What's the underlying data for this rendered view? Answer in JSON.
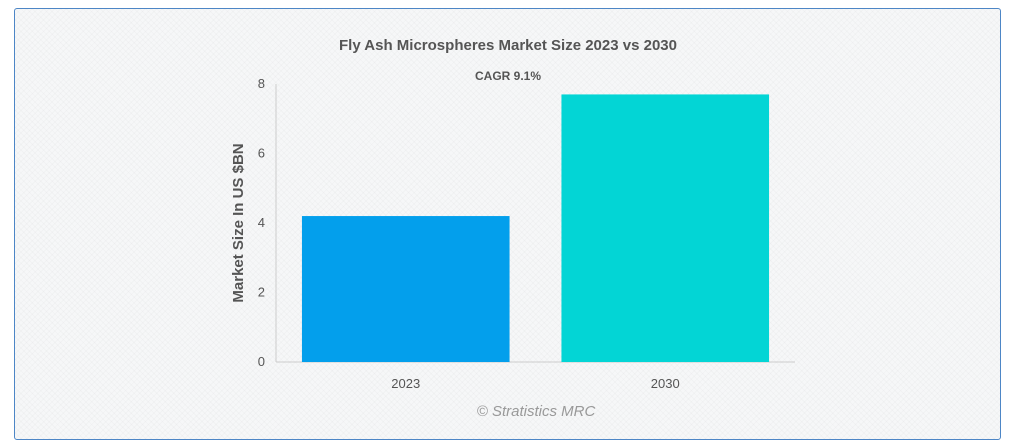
{
  "chart_data": {
    "type": "bar",
    "title": "Fly Ash Microspheres Market Size 2023 vs 2030",
    "subtitle": "CAGR 9.1%",
    "xlabel": "",
    "ylabel": "Market Size In US $BN",
    "categories": [
      "2023",
      "2030"
    ],
    "values": [
      4.2,
      7.7
    ],
    "colors": [
      "#039fec",
      "#03d5d5"
    ],
    "ylim": [
      0,
      8
    ],
    "yticks": [
      0,
      2,
      4,
      6,
      8
    ],
    "grid": false,
    "legend": "none"
  },
  "credit": "© Stratistics MRC"
}
